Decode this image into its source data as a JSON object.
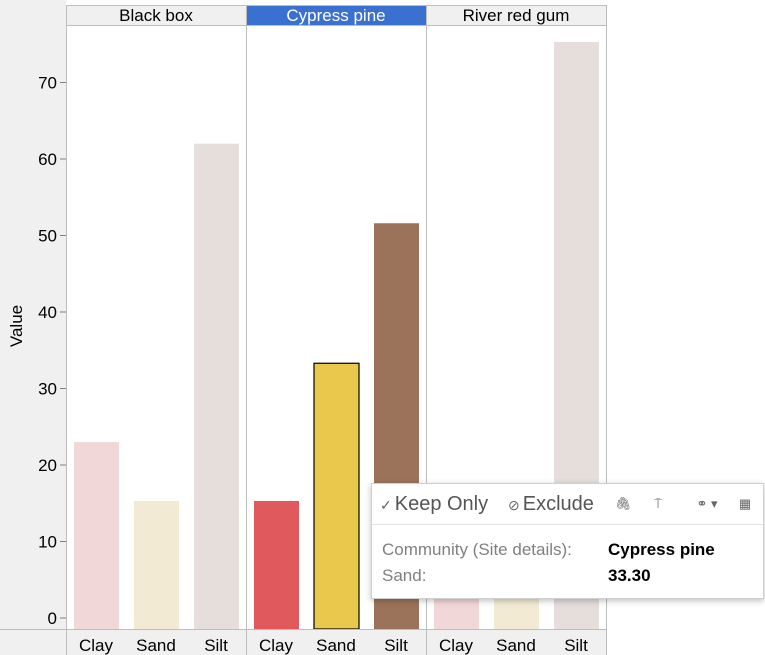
{
  "chart_data": {
    "type": "bar",
    "panels": [
      "Black box",
      "Cypress pine",
      "River red gum"
    ],
    "selected_panel": "Cypress pine",
    "categories": [
      "Clay",
      "Sand",
      "Silt"
    ],
    "values": {
      "Black box": [
        23.0,
        15.3,
        62.0
      ],
      "Cypress pine": [
        15.3,
        33.3,
        51.6
      ],
      "River red gum": [
        3.0,
        4.0,
        75.3
      ]
    },
    "ylabel": "Value",
    "ylim": [
      0,
      77
    ],
    "yticks": [
      0,
      10,
      20,
      30,
      40,
      50,
      60,
      70
    ],
    "highlight_colors": {
      "Clay": "#e05a5d",
      "Sand": "#eac84b",
      "Silt": "#9b735a"
    },
    "dim_colors": {
      "Clay": "#f2d7d8",
      "Sand": "#f2ead2",
      "Silt": "#e5dedb"
    },
    "selected_bar": {
      "panel": "Cypress pine",
      "category": "Sand"
    },
    "header_highlight_color": "#3a70cf"
  },
  "tooltip": {
    "keep_only_label": "Keep Only",
    "exclude_label": "Exclude",
    "rows": [
      {
        "label": "Community (Site details):",
        "value": "Cypress pine"
      },
      {
        "label": "Sand:",
        "value": "33.30"
      }
    ]
  }
}
